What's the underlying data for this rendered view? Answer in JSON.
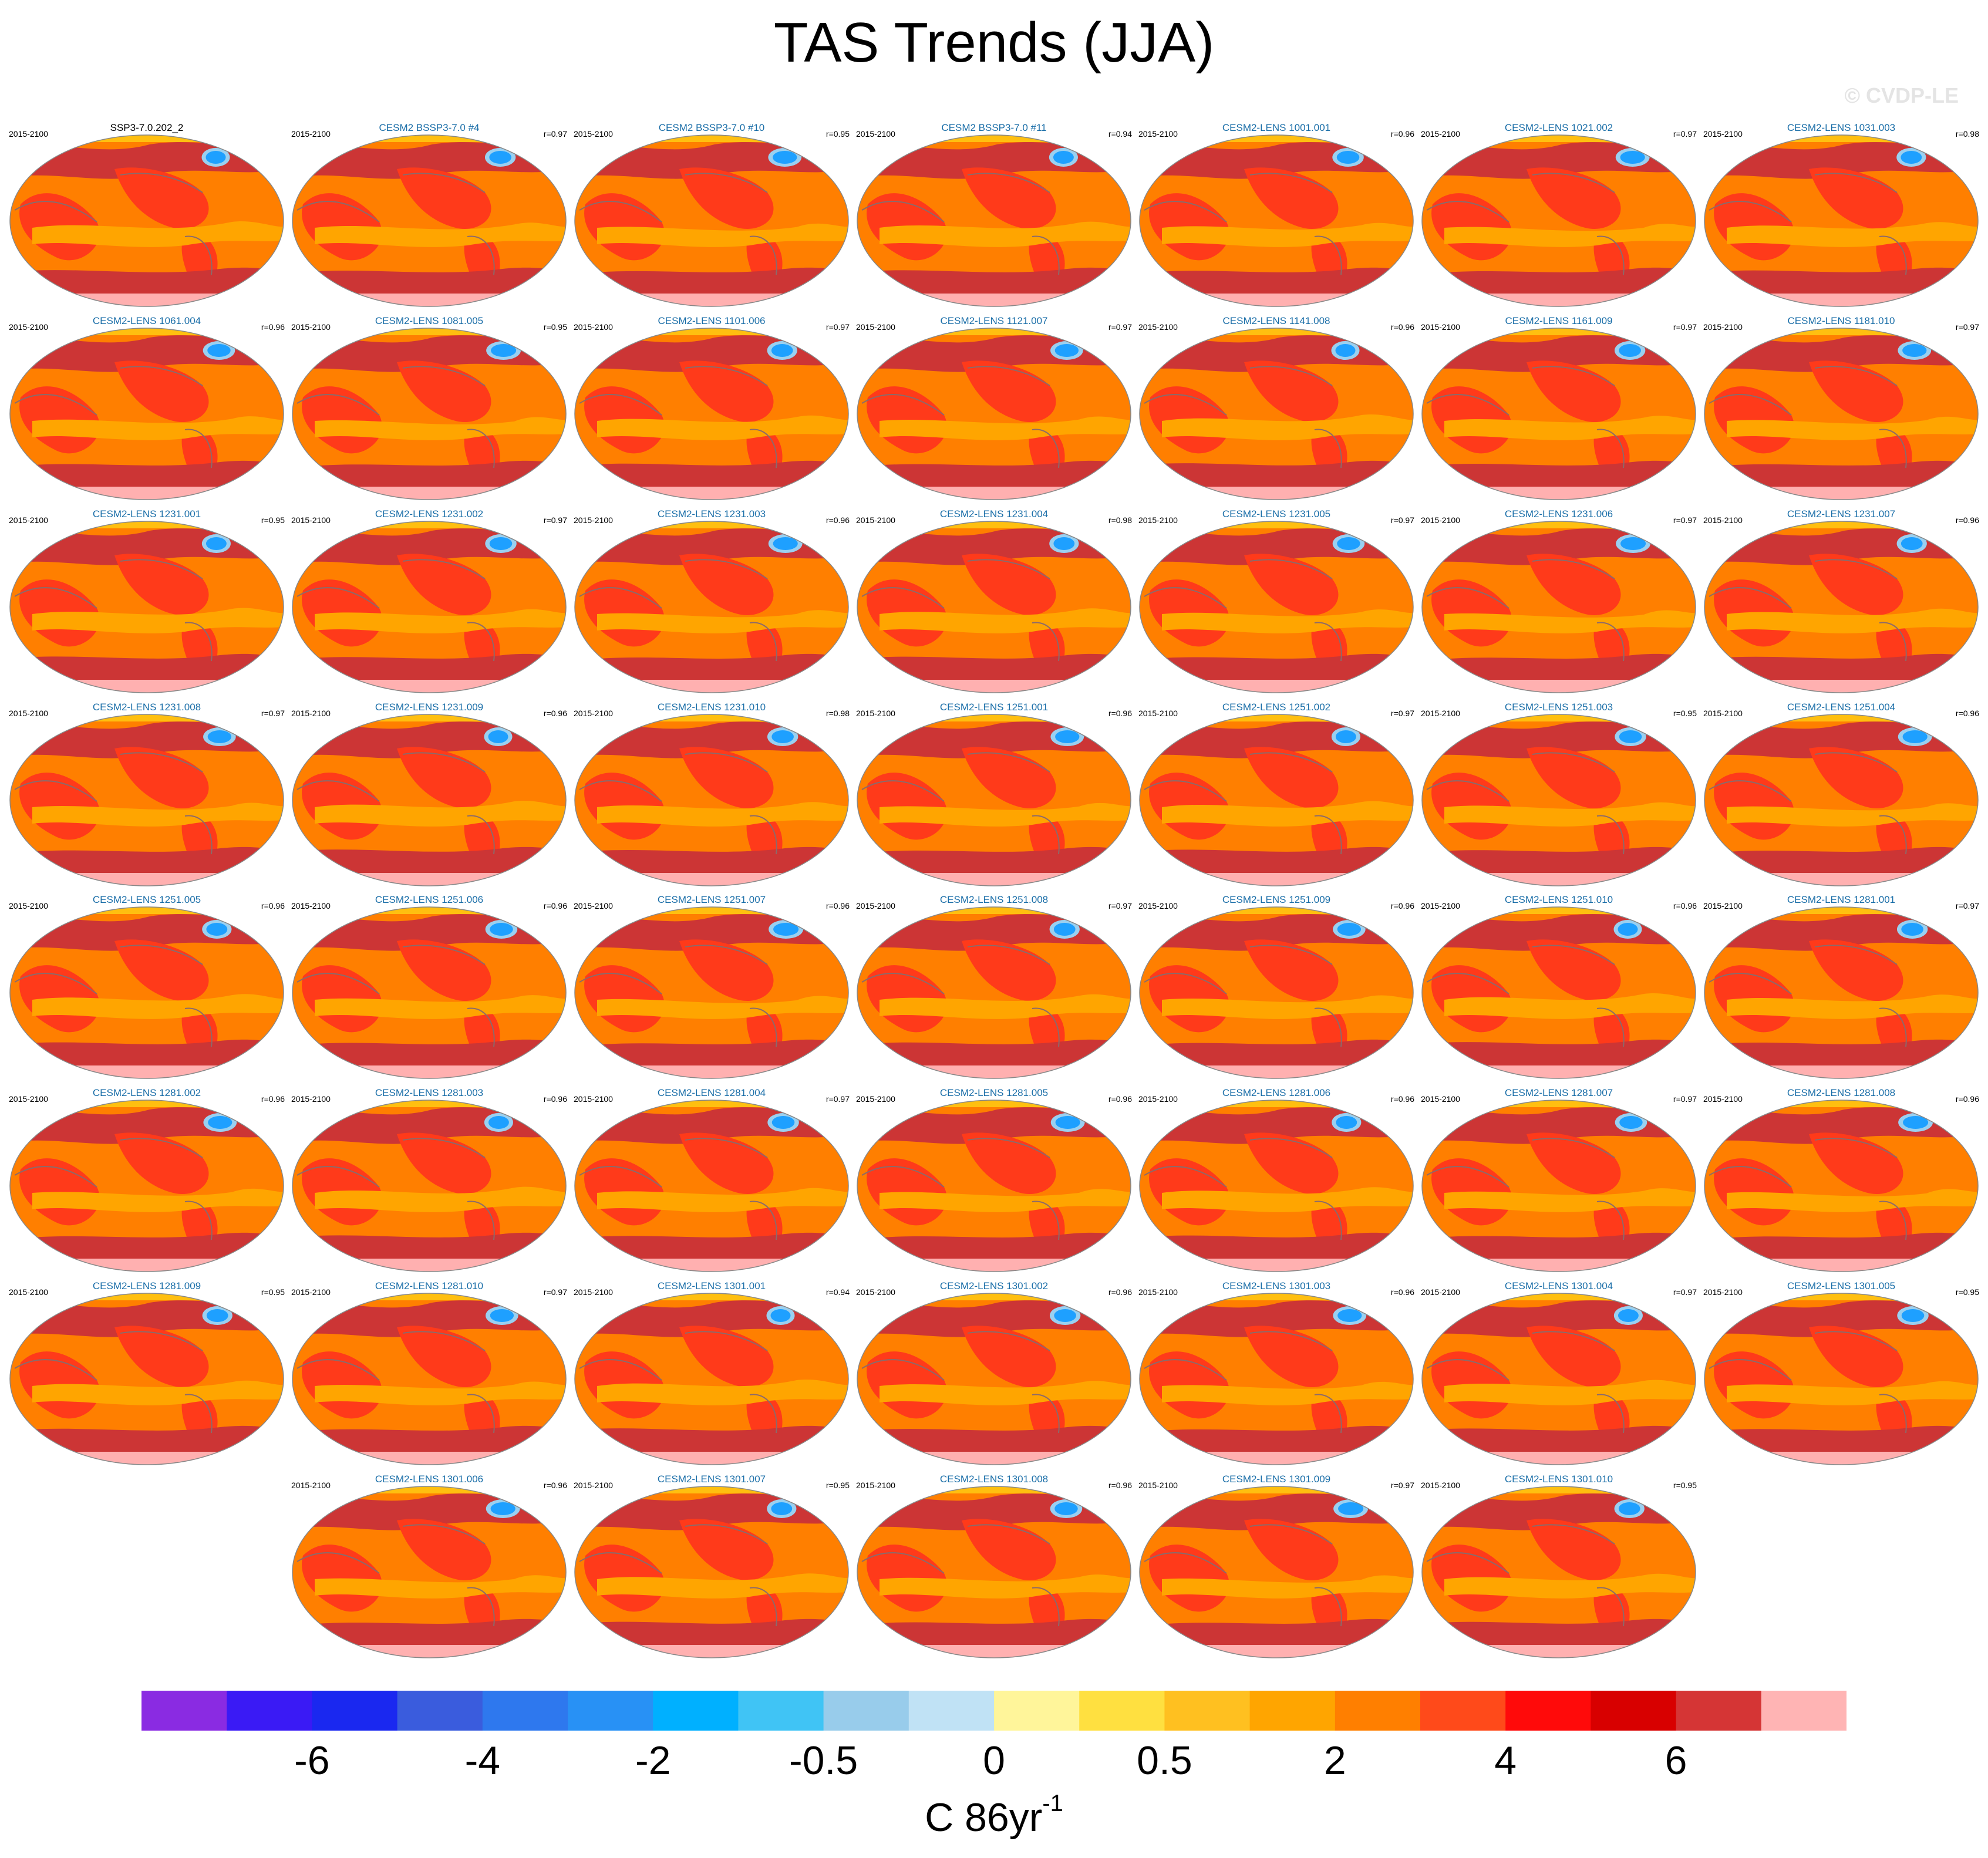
{
  "title": "TAS Trends (JJA)",
  "copyright": "© CVDP-LE",
  "colors": {
    "base_ocean": "#ff7f00",
    "tropical_band": "#ffa500",
    "land_warm": "#ff3a1a",
    "high_lat": "#cc3535",
    "polar_edge": "#ffb0b0",
    "north_cap": "#ffbf10",
    "cold_blob": "#1ea0ff",
    "cold_blob_edge": "#9ad0f0",
    "coast": "#8c6a6a"
  },
  "panels": [
    {
      "period": "2015-2100",
      "member": "SSP3-7.0.202_2",
      "corr": "",
      "obs": true
    },
    {
      "period": "2015-2100",
      "member": "CESM2 BSSP3-7.0 #4",
      "corr": "r=0.97"
    },
    {
      "period": "2015-2100",
      "member": "CESM2 BSSP3-7.0 #10",
      "corr": "r=0.95"
    },
    {
      "period": "2015-2100",
      "member": "CESM2 BSSP3-7.0 #11",
      "corr": "r=0.94"
    },
    {
      "period": "2015-2100",
      "member": "CESM2-LENS 1001.001",
      "corr": "r=0.96"
    },
    {
      "period": "2015-2100",
      "member": "CESM2-LENS 1021.002",
      "corr": "r=0.97"
    },
    {
      "period": "2015-2100",
      "member": "CESM2-LENS 1031.003",
      "corr": "r=0.98"
    },
    {
      "period": "2015-2100",
      "member": "CESM2-LENS 1061.004",
      "corr": "r=0.96"
    },
    {
      "period": "2015-2100",
      "member": "CESM2-LENS 1081.005",
      "corr": "r=0.95"
    },
    {
      "period": "2015-2100",
      "member": "CESM2-LENS 1101.006",
      "corr": "r=0.97"
    },
    {
      "period": "2015-2100",
      "member": "CESM2-LENS 1121.007",
      "corr": "r=0.97"
    },
    {
      "period": "2015-2100",
      "member": "CESM2-LENS 1141.008",
      "corr": "r=0.96"
    },
    {
      "period": "2015-2100",
      "member": "CESM2-LENS 1161.009",
      "corr": "r=0.97"
    },
    {
      "period": "2015-2100",
      "member": "CESM2-LENS 1181.010",
      "corr": "r=0.97"
    },
    {
      "period": "2015-2100",
      "member": "CESM2-LENS 1231.001",
      "corr": "r=0.95"
    },
    {
      "period": "2015-2100",
      "member": "CESM2-LENS 1231.002",
      "corr": "r=0.97"
    },
    {
      "period": "2015-2100",
      "member": "CESM2-LENS 1231.003",
      "corr": "r=0.96"
    },
    {
      "period": "2015-2100",
      "member": "CESM2-LENS 1231.004",
      "corr": "r=0.98"
    },
    {
      "period": "2015-2100",
      "member": "CESM2-LENS 1231.005",
      "corr": "r=0.97"
    },
    {
      "period": "2015-2100",
      "member": "CESM2-LENS 1231.006",
      "corr": "r=0.97"
    },
    {
      "period": "2015-2100",
      "member": "CESM2-LENS 1231.007",
      "corr": "r=0.96"
    },
    {
      "period": "2015-2100",
      "member": "CESM2-LENS 1231.008",
      "corr": "r=0.97"
    },
    {
      "period": "2015-2100",
      "member": "CESM2-LENS 1231.009",
      "corr": "r=0.96"
    },
    {
      "period": "2015-2100",
      "member": "CESM2-LENS 1231.010",
      "corr": "r=0.98"
    },
    {
      "period": "2015-2100",
      "member": "CESM2-LENS 1251.001",
      "corr": "r=0.96"
    },
    {
      "period": "2015-2100",
      "member": "CESM2-LENS 1251.002",
      "corr": "r=0.97"
    },
    {
      "period": "2015-2100",
      "member": "CESM2-LENS 1251.003",
      "corr": "r=0.95"
    },
    {
      "period": "2015-2100",
      "member": "CESM2-LENS 1251.004",
      "corr": "r=0.96"
    },
    {
      "period": "2015-2100",
      "member": "CESM2-LENS 1251.005",
      "corr": "r=0.96"
    },
    {
      "period": "2015-2100",
      "member": "CESM2-LENS 1251.006",
      "corr": "r=0.96"
    },
    {
      "period": "2015-2100",
      "member": "CESM2-LENS 1251.007",
      "corr": "r=0.96"
    },
    {
      "period": "2015-2100",
      "member": "CESM2-LENS 1251.008",
      "corr": "r=0.97"
    },
    {
      "period": "2015-2100",
      "member": "CESM2-LENS 1251.009",
      "corr": "r=0.96"
    },
    {
      "period": "2015-2100",
      "member": "CESM2-LENS 1251.010",
      "corr": "r=0.96"
    },
    {
      "period": "2015-2100",
      "member": "CESM2-LENS 1281.001",
      "corr": "r=0.97"
    },
    {
      "period": "2015-2100",
      "member": "CESM2-LENS 1281.002",
      "corr": "r=0.96"
    },
    {
      "period": "2015-2100",
      "member": "CESM2-LENS 1281.003",
      "corr": "r=0.96"
    },
    {
      "period": "2015-2100",
      "member": "CESM2-LENS 1281.004",
      "corr": "r=0.97"
    },
    {
      "period": "2015-2100",
      "member": "CESM2-LENS 1281.005",
      "corr": "r=0.96"
    },
    {
      "period": "2015-2100",
      "member": "CESM2-LENS 1281.006",
      "corr": "r=0.96"
    },
    {
      "period": "2015-2100",
      "member": "CESM2-LENS 1281.007",
      "corr": "r=0.97"
    },
    {
      "period": "2015-2100",
      "member": "CESM2-LENS 1281.008",
      "corr": "r=0.96"
    },
    {
      "period": "2015-2100",
      "member": "CESM2-LENS 1281.009",
      "corr": "r=0.95"
    },
    {
      "period": "2015-2100",
      "member": "CESM2-LENS 1281.010",
      "corr": "r=0.97"
    },
    {
      "period": "2015-2100",
      "member": "CESM2-LENS 1301.001",
      "corr": "r=0.94"
    },
    {
      "period": "2015-2100",
      "member": "CESM2-LENS 1301.002",
      "corr": "r=0.96"
    },
    {
      "period": "2015-2100",
      "member": "CESM2-LENS 1301.003",
      "corr": "r=0.96"
    },
    {
      "period": "2015-2100",
      "member": "CESM2-LENS 1301.004",
      "corr": "r=0.97"
    },
    {
      "period": "2015-2100",
      "member": "CESM2-LENS 1301.005",
      "corr": "r=0.95"
    },
    {
      "period": "2015-2100",
      "member": "CESM2-LENS 1301.006",
      "corr": "r=0.96"
    },
    {
      "period": "2015-2100",
      "member": "CESM2-LENS 1301.007",
      "corr": "r=0.95"
    },
    {
      "period": "2015-2100",
      "member": "CESM2-LENS 1301.008",
      "corr": "r=0.96"
    },
    {
      "period": "2015-2100",
      "member": "CESM2-LENS 1301.009",
      "corr": "r=0.97"
    },
    {
      "period": "2015-2100",
      "member": "CESM2-LENS 1301.010",
      "corr": "r=0.95"
    }
  ],
  "colorbar": {
    "colors": [
      "#8a2be2",
      "#3a1af5",
      "#1a28f0",
      "#3a5cdd",
      "#2e78ee",
      "#2891f5",
      "#00b0ff",
      "#40c4f5",
      "#98cceb",
      "#c0e2f5",
      "#fff59a",
      "#ffe040",
      "#ffc020",
      "#ffa500",
      "#ff7f00",
      "#ff4a1a",
      "#ff0a0a",
      "#d80000",
      "#d53535",
      "#ffb4b4"
    ],
    "tick_labels": [
      "-6",
      "-4",
      "-2",
      "-0.5",
      "0",
      "0.5",
      "2",
      "4",
      "6"
    ],
    "tick_boundaries": [
      2,
      4,
      6,
      8,
      10,
      12,
      14,
      16,
      18
    ]
  },
  "units": {
    "text": "C 86yr",
    "sup": "-1"
  }
}
